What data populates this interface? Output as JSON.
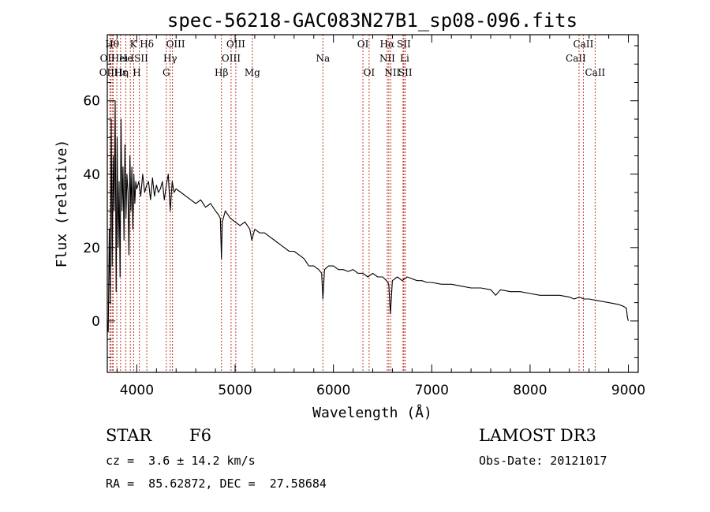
{
  "chart_data": {
    "type": "line",
    "title": "spec-56218-GAC083N27B1_sp08-096.fits",
    "xlabel": "Wavelength (Å)",
    "ylabel": "Flux (relative)",
    "xlim": [
      3700,
      9100
    ],
    "ylim": [
      -14,
      78
    ],
    "x_ticks": [
      4000,
      5000,
      6000,
      7000,
      8000,
      9000
    ],
    "x_tick_labels": [
      "4000",
      "5000",
      "6000",
      "7000",
      "8000",
      "9000"
    ],
    "y_ticks": [
      0,
      20,
      40,
      60
    ],
    "y_tick_labels": [
      "0",
      "20",
      "40",
      "60"
    ],
    "series": [
      {
        "name": "flux",
        "x": [
          3700,
          3710,
          3720,
          3730,
          3740,
          3750,
          3760,
          3770,
          3780,
          3790,
          3800,
          3810,
          3820,
          3830,
          3840,
          3850,
          3860,
          3870,
          3880,
          3890,
          3900,
          3910,
          3920,
          3930,
          3940,
          3950,
          3960,
          3970,
          3980,
          3990,
          4000,
          4020,
          4040,
          4060,
          4080,
          4100,
          4120,
          4140,
          4160,
          4180,
          4200,
          4220,
          4240,
          4260,
          4280,
          4300,
          4320,
          4340,
          4360,
          4380,
          4400,
          4450,
          4500,
          4550,
          4600,
          4650,
          4700,
          4750,
          4800,
          4830,
          4850,
          4861,
          4870,
          4900,
          4950,
          5000,
          5050,
          5100,
          5150,
          5170,
          5200,
          5250,
          5300,
          5350,
          5400,
          5450,
          5500,
          5550,
          5600,
          5650,
          5700,
          5750,
          5800,
          5850,
          5880,
          5893,
          5910,
          5950,
          6000,
          6050,
          6100,
          6150,
          6200,
          6250,
          6300,
          6350,
          6400,
          6450,
          6500,
          6540,
          6563,
          6580,
          6600,
          6650,
          6700,
          6750,
          6800,
          6850,
          6900,
          6950,
          7000,
          7100,
          7200,
          7300,
          7400,
          7500,
          7600,
          7650,
          7700,
          7800,
          7900,
          8000,
          8100,
          8200,
          8300,
          8400,
          8450,
          8500,
          8550,
          8600,
          8700,
          8800,
          8900,
          8950,
          8980,
          8990,
          9000
        ],
        "y": [
          0,
          -3,
          25,
          5,
          55,
          15,
          45,
          30,
          60,
          8,
          50,
          20,
          38,
          12,
          55,
          30,
          42,
          22,
          48,
          28,
          40,
          35,
          18,
          45,
          30,
          42,
          25,
          40,
          32,
          38,
          36,
          38,
          34,
          40,
          35,
          37,
          38,
          33,
          39,
          34,
          37,
          35,
          36,
          38,
          33,
          37,
          40,
          30,
          38,
          35,
          36,
          35,
          34,
          33,
          32,
          33,
          31,
          32,
          30,
          29,
          28,
          17,
          27,
          30,
          28,
          27,
          26,
          27,
          25,
          22,
          25,
          24,
          24,
          23,
          22,
          21,
          20,
          19,
          19,
          18,
          17,
          15,
          15,
          14,
          13,
          6,
          14,
          15,
          15,
          14,
          14,
          13.5,
          14,
          13,
          13,
          12,
          13,
          12,
          12,
          11,
          10,
          2,
          11,
          12,
          11,
          12,
          11.5,
          11,
          11,
          10.5,
          10.5,
          10,
          10,
          9.5,
          9,
          9,
          8.5,
          7,
          8.5,
          8,
          8,
          7.5,
          7,
          7,
          7,
          6.5,
          6,
          6.5,
          6,
          6,
          5.5,
          5,
          4.5,
          4,
          3.5,
          1,
          0
        ]
      }
    ],
    "lines": [
      {
        "w": 3727,
        "label": "OII",
        "row": 2,
        "dx": -4
      },
      {
        "w": 3734,
        "label": "OII",
        "row": 1,
        "dx": -4
      },
      {
        "w": 3750,
        "label": "Hθ",
        "row": 0,
        "dx": 0
      },
      {
        "w": 3760,
        "label": "Hei",
        "row": 1,
        "dx": 8
      },
      {
        "w": 3797,
        "label": "Hη",
        "row": 2,
        "dx": 6
      },
      {
        "w": 3835,
        "label": "Hε",
        "row": 2,
        "dx": 0
      },
      {
        "w": 3889,
        "label": "He",
        "row": 1,
        "dx": 0
      },
      {
        "w": 3934,
        "label": "K",
        "row": 0,
        "dx": 4
      },
      {
        "w": 3969,
        "label": "H",
        "row": 2,
        "dx": 4
      },
      {
        "w": 4026,
        "label": "ISII",
        "row": 1,
        "dx": 0
      },
      {
        "w": 4102,
        "label": "Hδ",
        "row": 0,
        "dx": 0
      },
      {
        "w": 4300,
        "label": "G",
        "row": 2,
        "dx": 0
      },
      {
        "w": 4340,
        "label": "Hγ",
        "row": 1,
        "dx": 0
      },
      {
        "w": 4363,
        "label": "OIII",
        "row": 0,
        "dx": 4
      },
      {
        "w": 4861,
        "label": "Hβ",
        "row": 2,
        "dx": 0
      },
      {
        "w": 4959,
        "label": "OIII",
        "row": 1,
        "dx": 0
      },
      {
        "w": 5007,
        "label": "OIII",
        "row": 0,
        "dx": 0
      },
      {
        "w": 5175,
        "label": "Mg",
        "row": 2,
        "dx": 0
      },
      {
        "w": 5893,
        "label": "Na",
        "row": 1,
        "dx": 0
      },
      {
        "w": 6300,
        "label": "OI",
        "row": 0,
        "dx": 0
      },
      {
        "w": 6363,
        "label": "OI",
        "row": 2,
        "dx": 0
      },
      {
        "w": 6548,
        "label": "NII",
        "row": 1,
        "dx": 0
      },
      {
        "w": 6563,
        "label": "Hα",
        "row": 0,
        "dx": -2
      },
      {
        "w": 6583,
        "label": "NII",
        "row": 2,
        "dx": 2
      },
      {
        "w": 6708,
        "label": "Li",
        "row": 1,
        "dx": 2
      },
      {
        "w": 6716,
        "label": "SII",
        "row": 0,
        "dx": 0
      },
      {
        "w": 6731,
        "label": "SII",
        "row": 2,
        "dx": 0
      },
      {
        "w": 8498,
        "label": "CaII",
        "row": 1,
        "dx": -4
      },
      {
        "w": 8542,
        "label": "CaII",
        "row": 0,
        "dx": 0
      },
      {
        "w": 8662,
        "label": "CaII",
        "row": 2,
        "dx": 0
      }
    ]
  },
  "info": {
    "class_label": "STAR",
    "subclass": "F6",
    "survey": "LAMOST DR3",
    "redshift": "cz =  3.6 ± 14.2 km/s",
    "obs_date": "Obs-Date: 20121017",
    "coords": "RA =  85.62872, DEC =  27.58684"
  },
  "colors": {
    "line_marker": "#c0392b",
    "spectrum": "#000000",
    "axes": "#000000"
  }
}
